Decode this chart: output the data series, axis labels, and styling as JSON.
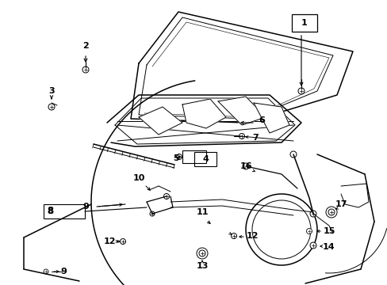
{
  "background_color": "#ffffff",
  "line_color": "#000000",
  "figsize": [
    4.89,
    3.6
  ],
  "dpi": 100,
  "label_fontsize": 8.0,
  "lw_main": 1.1,
  "lw_thin": 0.7,
  "lw_med": 0.9
}
